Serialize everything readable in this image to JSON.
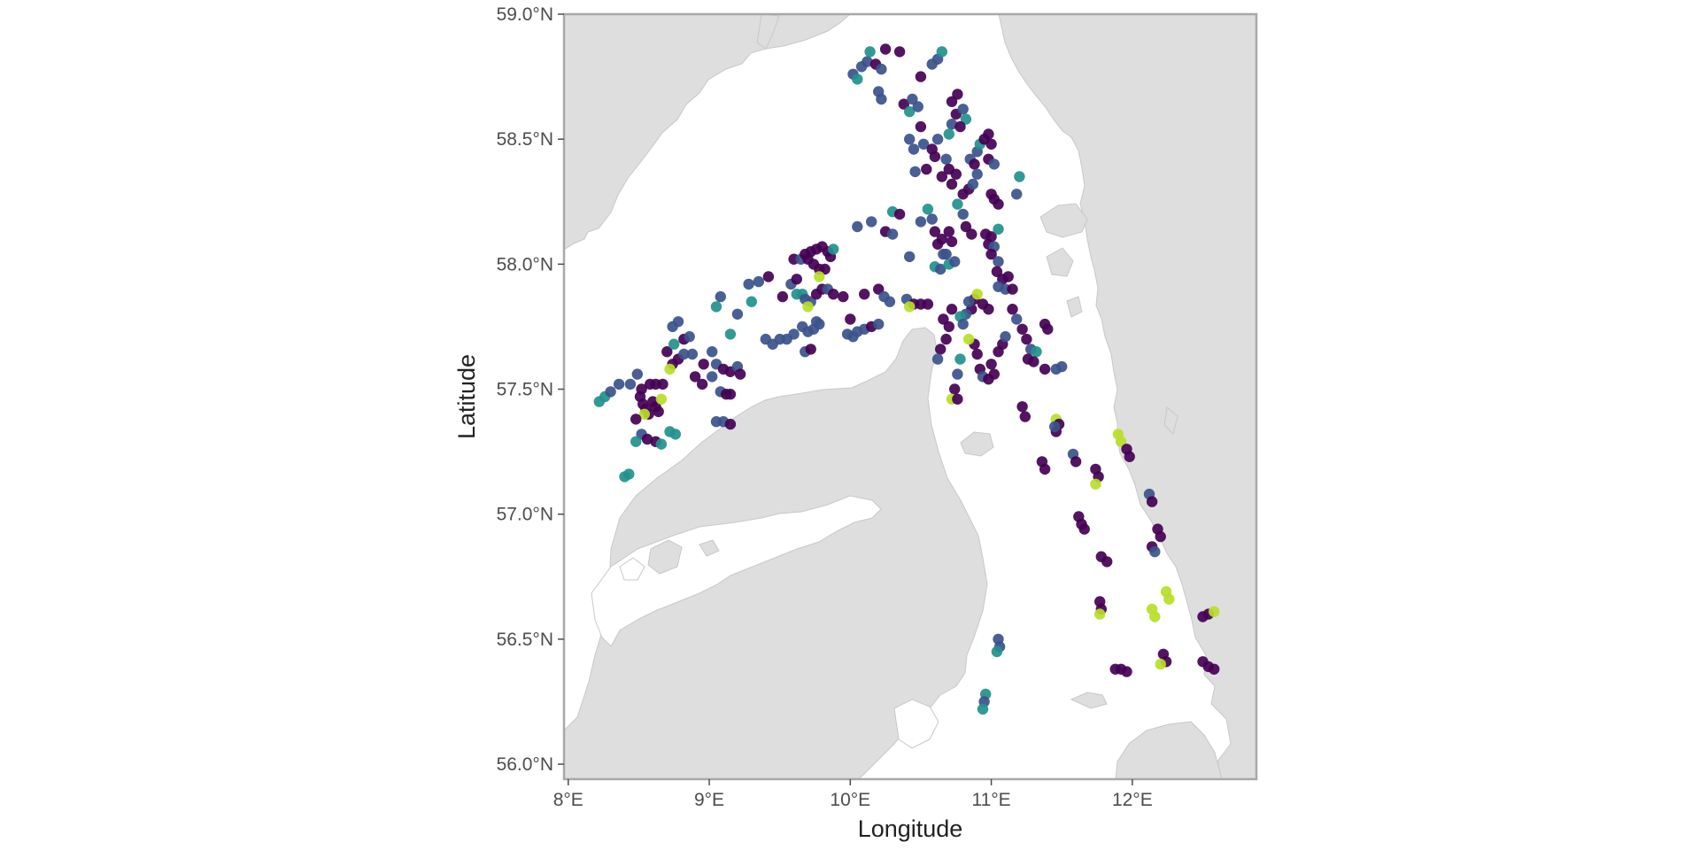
{
  "chart_data": {
    "type": "scatter",
    "subtype": "geographic point map",
    "xlabel": "Longitude",
    "ylabel": "Latitude",
    "xlim": [
      7.97,
      12.88
    ],
    "ylim": [
      55.94,
      59.0
    ],
    "x_ticks": [
      {
        "value": 8,
        "label": "8°E"
      },
      {
        "value": 9,
        "label": "9°E"
      },
      {
        "value": 10,
        "label": "10°E"
      },
      {
        "value": 11,
        "label": "11°E"
      },
      {
        "value": 12,
        "label": "12°E"
      }
    ],
    "y_ticks": [
      {
        "value": 56.0,
        "label": "56.0°N"
      },
      {
        "value": 56.5,
        "label": "56.5°N"
      },
      {
        "value": 57.0,
        "label": "57.0°N"
      },
      {
        "value": 57.5,
        "label": "57.5°N"
      },
      {
        "value": 58.0,
        "label": "58.0°N"
      },
      {
        "value": 58.5,
        "label": "58.5°N"
      },
      {
        "value": 59.0,
        "label": "59.0°N"
      }
    ],
    "grid": false,
    "legend": "none",
    "background_land_color": "#dedede",
    "sea_color": "#ffffff",
    "palette": {
      "a": "#440154",
      "b": "#3b528b",
      "c": "#21918c",
      "d": "#b8de29"
    },
    "points": [
      [
        8.22,
        57.45,
        "c"
      ],
      [
        8.26,
        57.47,
        "c"
      ],
      [
        8.3,
        57.49,
        "b"
      ],
      [
        8.36,
        57.52,
        "b"
      ],
      [
        8.44,
        57.52,
        "b"
      ],
      [
        8.49,
        57.56,
        "b"
      ],
      [
        8.51,
        57.47,
        "a"
      ],
      [
        8.53,
        57.44,
        "a"
      ],
      [
        8.55,
        57.42,
        "a"
      ],
      [
        8.57,
        57.4,
        "a"
      ],
      [
        8.6,
        57.45,
        "a"
      ],
      [
        8.62,
        57.43,
        "a"
      ],
      [
        8.64,
        57.41,
        "a"
      ],
      [
        8.66,
        57.46,
        "d"
      ],
      [
        8.58,
        57.52,
        "a"
      ],
      [
        8.62,
        57.52,
        "a"
      ],
      [
        8.67,
        57.52,
        "a"
      ],
      [
        8.54,
        57.4,
        "d"
      ],
      [
        8.52,
        57.32,
        "b"
      ],
      [
        8.56,
        57.3,
        "a"
      ],
      [
        8.62,
        57.29,
        "a"
      ],
      [
        8.66,
        57.28,
        "c"
      ],
      [
        8.48,
        57.29,
        "c"
      ],
      [
        8.72,
        57.33,
        "c"
      ],
      [
        8.76,
        57.32,
        "c"
      ],
      [
        8.4,
        57.15,
        "c"
      ],
      [
        8.43,
        57.16,
        "c"
      ],
      [
        8.48,
        57.38,
        "a"
      ],
      [
        8.52,
        57.5,
        "a"
      ],
      [
        8.7,
        57.65,
        "a"
      ],
      [
        8.75,
        57.68,
        "c"
      ],
      [
        8.78,
        57.62,
        "a"
      ],
      [
        8.74,
        57.6,
        "a"
      ],
      [
        8.72,
        57.58,
        "d"
      ],
      [
        8.82,
        57.64,
        "b"
      ],
      [
        8.74,
        57.75,
        "b"
      ],
      [
        8.78,
        57.77,
        "b"
      ],
      [
        8.82,
        57.7,
        "a"
      ],
      [
        8.86,
        57.71,
        "b"
      ],
      [
        8.88,
        57.64,
        "b"
      ],
      [
        8.9,
        57.55,
        "a"
      ],
      [
        8.95,
        57.52,
        "a"
      ],
      [
        8.96,
        57.6,
        "a"
      ],
      [
        9.02,
        57.55,
        "b"
      ],
      [
        9.05,
        57.6,
        "b"
      ],
      [
        9.1,
        57.58,
        "a"
      ],
      [
        9.15,
        57.57,
        "a"
      ],
      [
        9.2,
        57.59,
        "b"
      ],
      [
        9.22,
        57.56,
        "a"
      ],
      [
        9.08,
        57.49,
        "b"
      ],
      [
        9.12,
        57.48,
        "a"
      ],
      [
        9.15,
        57.48,
        "a"
      ],
      [
        9.05,
        57.37,
        "b"
      ],
      [
        9.1,
        57.37,
        "b"
      ],
      [
        9.15,
        57.36,
        "a"
      ],
      [
        9.02,
        57.65,
        "b"
      ],
      [
        9.05,
        57.83,
        "c"
      ],
      [
        9.08,
        57.87,
        "b"
      ],
      [
        9.15,
        57.72,
        "c"
      ],
      [
        9.2,
        57.8,
        "b"
      ],
      [
        9.3,
        57.85,
        "c"
      ],
      [
        9.28,
        57.92,
        "b"
      ],
      [
        9.35,
        57.93,
        "b"
      ],
      [
        9.42,
        57.95,
        "a"
      ],
      [
        9.4,
        57.7,
        "b"
      ],
      [
        9.45,
        57.68,
        "b"
      ],
      [
        9.5,
        57.7,
        "b"
      ],
      [
        9.55,
        57.7,
        "b"
      ],
      [
        9.6,
        57.72,
        "b"
      ],
      [
        9.52,
        57.87,
        "a"
      ],
      [
        9.58,
        57.92,
        "b"
      ],
      [
        9.62,
        57.88,
        "c"
      ],
      [
        9.66,
        57.88,
        "c"
      ],
      [
        9.68,
        57.86,
        "b"
      ],
      [
        9.72,
        57.85,
        "b"
      ],
      [
        9.76,
        57.88,
        "a"
      ],
      [
        9.8,
        57.9,
        "a"
      ],
      [
        9.84,
        57.9,
        "b"
      ],
      [
        9.88,
        57.88,
        "a"
      ],
      [
        9.7,
        57.83,
        "d"
      ],
      [
        9.62,
        57.94,
        "a"
      ],
      [
        9.6,
        58.02,
        "a"
      ],
      [
        9.65,
        58.02,
        "b"
      ],
      [
        9.68,
        58.04,
        "a"
      ],
      [
        9.72,
        58.05,
        "a"
      ],
      [
        9.76,
        58.06,
        "a"
      ],
      [
        9.8,
        58.07,
        "a"
      ],
      [
        9.84,
        58.05,
        "a"
      ],
      [
        9.86,
        58.03,
        "a"
      ],
      [
        9.74,
        58.0,
        "a"
      ],
      [
        9.78,
        57.98,
        "a"
      ],
      [
        9.82,
        57.98,
        "a"
      ],
      [
        9.78,
        57.95,
        "d"
      ],
      [
        9.88,
        58.06,
        "c"
      ],
      [
        9.7,
        58.02,
        "a"
      ],
      [
        9.66,
        57.75,
        "b"
      ],
      [
        9.7,
        57.73,
        "b"
      ],
      [
        9.74,
        57.74,
        "b"
      ],
      [
        9.78,
        57.76,
        "b"
      ],
      [
        9.68,
        57.65,
        "b"
      ],
      [
        9.72,
        57.66,
        "a"
      ],
      [
        9.76,
        57.77,
        "b"
      ],
      [
        9.95,
        57.87,
        "a"
      ],
      [
        10.0,
        57.78,
        "a"
      ],
      [
        10.05,
        57.73,
        "b"
      ],
      [
        10.1,
        57.74,
        "b"
      ],
      [
        10.15,
        57.75,
        "a"
      ],
      [
        10.2,
        57.76,
        "b"
      ],
      [
        9.98,
        57.72,
        "b"
      ],
      [
        10.02,
        57.71,
        "b"
      ],
      [
        10.1,
        57.88,
        "a"
      ],
      [
        10.2,
        57.9,
        "a"
      ],
      [
        10.24,
        57.87,
        "b"
      ],
      [
        10.28,
        57.85,
        "b"
      ],
      [
        10.05,
        58.15,
        "b"
      ],
      [
        10.15,
        58.17,
        "b"
      ],
      [
        10.25,
        58.13,
        "a"
      ],
      [
        10.3,
        58.12,
        "b"
      ],
      [
        10.3,
        58.21,
        "c"
      ],
      [
        10.35,
        58.2,
        "a"
      ],
      [
        10.42,
        58.03,
        "b"
      ],
      [
        10.4,
        57.86,
        "b"
      ],
      [
        10.45,
        57.84,
        "a"
      ],
      [
        10.5,
        57.84,
        "a"
      ],
      [
        10.55,
        57.84,
        "a"
      ],
      [
        10.42,
        57.83,
        "d"
      ],
      [
        10.02,
        58.76,
        "b"
      ],
      [
        10.05,
        58.74,
        "c"
      ],
      [
        10.08,
        58.79,
        "b"
      ],
      [
        10.12,
        58.81,
        "b"
      ],
      [
        10.14,
        58.85,
        "c"
      ],
      [
        10.18,
        58.8,
        "a"
      ],
      [
        10.22,
        58.78,
        "b"
      ],
      [
        10.25,
        58.86,
        "a"
      ],
      [
        10.2,
        58.69,
        "b"
      ],
      [
        10.22,
        58.66,
        "b"
      ],
      [
        10.35,
        58.85,
        "a"
      ],
      [
        10.38,
        58.64,
        "a"
      ],
      [
        10.42,
        58.61,
        "c"
      ],
      [
        10.44,
        58.66,
        "b"
      ],
      [
        10.48,
        58.63,
        "b"
      ],
      [
        10.5,
        58.75,
        "a"
      ],
      [
        10.58,
        58.8,
        "b"
      ],
      [
        10.62,
        58.82,
        "b"
      ],
      [
        10.65,
        58.85,
        "c"
      ],
      [
        10.42,
        58.5,
        "b"
      ],
      [
        10.45,
        58.46,
        "b"
      ],
      [
        10.5,
        58.55,
        "a"
      ],
      [
        10.52,
        58.48,
        "b"
      ],
      [
        10.54,
        58.38,
        "a"
      ],
      [
        10.46,
        58.37,
        "b"
      ],
      [
        10.58,
        58.46,
        "a"
      ],
      [
        10.6,
        58.43,
        "a"
      ],
      [
        10.62,
        58.5,
        "b"
      ],
      [
        10.68,
        58.42,
        "b"
      ],
      [
        10.65,
        58.35,
        "a"
      ],
      [
        10.7,
        58.38,
        "a"
      ],
      [
        10.72,
        58.32,
        "a"
      ],
      [
        10.75,
        58.36,
        "a"
      ],
      [
        10.72,
        58.56,
        "b"
      ],
      [
        10.75,
        58.6,
        "a"
      ],
      [
        10.72,
        58.65,
        "a"
      ],
      [
        10.76,
        58.68,
        "a"
      ],
      [
        10.8,
        58.62,
        "b"
      ],
      [
        10.82,
        58.58,
        "c"
      ],
      [
        10.78,
        58.55,
        "a"
      ],
      [
        10.7,
        58.52,
        "c"
      ],
      [
        10.85,
        58.42,
        "b"
      ],
      [
        10.88,
        58.4,
        "a"
      ],
      [
        10.9,
        58.45,
        "b"
      ],
      [
        10.92,
        58.48,
        "c"
      ],
      [
        10.95,
        58.5,
        "a"
      ],
      [
        10.98,
        58.52,
        "a"
      ],
      [
        11.0,
        58.48,
        "a"
      ],
      [
        10.84,
        58.3,
        "a"
      ],
      [
        10.87,
        58.32,
        "b"
      ],
      [
        10.9,
        58.36,
        "b"
      ],
      [
        10.8,
        58.28,
        "a"
      ],
      [
        10.98,
        58.42,
        "a"
      ],
      [
        11.02,
        58.4,
        "b"
      ],
      [
        11.2,
        58.35,
        "c"
      ],
      [
        11.18,
        58.28,
        "b"
      ],
      [
        11.02,
        58.26,
        "a"
      ],
      [
        11.05,
        58.24,
        "a"
      ],
      [
        11.0,
        58.28,
        "a"
      ],
      [
        10.5,
        58.17,
        "b"
      ],
      [
        10.55,
        58.22,
        "c"
      ],
      [
        10.58,
        58.18,
        "b"
      ],
      [
        10.6,
        58.13,
        "a"
      ],
      [
        10.62,
        58.08,
        "a"
      ],
      [
        10.65,
        58.1,
        "a"
      ],
      [
        10.66,
        58.04,
        "b"
      ],
      [
        10.7,
        58.13,
        "a"
      ],
      [
        10.72,
        58.09,
        "a"
      ],
      [
        10.76,
        58.24,
        "c"
      ],
      [
        10.8,
        58.2,
        "b"
      ],
      [
        10.82,
        58.15,
        "a"
      ],
      [
        10.86,
        58.12,
        "a"
      ],
      [
        10.6,
        57.99,
        "c"
      ],
      [
        10.64,
        57.98,
        "b"
      ],
      [
        10.7,
        58.0,
        "c"
      ],
      [
        10.74,
        58.01,
        "b"
      ],
      [
        10.68,
        58.04,
        "b"
      ],
      [
        10.96,
        58.12,
        "a"
      ],
      [
        11.0,
        58.11,
        "a"
      ],
      [
        11.05,
        58.14,
        "c"
      ],
      [
        10.98,
        58.08,
        "a"
      ],
      [
        11.02,
        58.07,
        "b"
      ],
      [
        11.0,
        58.04,
        "a"
      ],
      [
        11.05,
        58.01,
        "b"
      ],
      [
        11.04,
        57.97,
        "a"
      ],
      [
        11.08,
        57.94,
        "a"
      ],
      [
        11.12,
        57.95,
        "a"
      ],
      [
        11.1,
        57.9,
        "b"
      ],
      [
        11.15,
        57.9,
        "a"
      ],
      [
        11.05,
        57.91,
        "b"
      ],
      [
        10.88,
        57.86,
        "a"
      ],
      [
        10.9,
        57.88,
        "d"
      ],
      [
        10.94,
        57.84,
        "a"
      ],
      [
        10.98,
        57.82,
        "a"
      ],
      [
        10.86,
        57.82,
        "a"
      ],
      [
        10.82,
        57.8,
        "b"
      ],
      [
        10.84,
        57.85,
        "b"
      ],
      [
        10.78,
        57.79,
        "c"
      ],
      [
        10.8,
        57.76,
        "b"
      ],
      [
        10.66,
        57.78,
        "a"
      ],
      [
        10.72,
        57.82,
        "a"
      ],
      [
        10.7,
        57.75,
        "a"
      ],
      [
        10.68,
        57.7,
        "a"
      ],
      [
        10.64,
        57.66,
        "a"
      ],
      [
        10.62,
        57.62,
        "b"
      ],
      [
        10.76,
        57.56,
        "b"
      ],
      [
        10.74,
        57.5,
        "a"
      ],
      [
        10.72,
        57.46,
        "d"
      ],
      [
        10.76,
        57.46,
        "a"
      ],
      [
        10.78,
        57.62,
        "c"
      ],
      [
        10.88,
        57.68,
        "a"
      ],
      [
        10.9,
        57.64,
        "a"
      ],
      [
        10.84,
        57.7,
        "d"
      ],
      [
        10.92,
        57.58,
        "a"
      ],
      [
        10.94,
        57.55,
        "b"
      ],
      [
        10.98,
        57.54,
        "a"
      ],
      [
        11.02,
        57.56,
        "a"
      ],
      [
        11.0,
        57.6,
        "a"
      ],
      [
        11.05,
        57.65,
        "a"
      ],
      [
        11.08,
        57.68,
        "a"
      ],
      [
        11.1,
        57.71,
        "b"
      ],
      [
        11.15,
        57.82,
        "a"
      ],
      [
        11.18,
        57.78,
        "b"
      ],
      [
        11.22,
        57.74,
        "a"
      ],
      [
        11.25,
        57.7,
        "a"
      ],
      [
        11.28,
        57.66,
        "b"
      ],
      [
        11.32,
        57.65,
        "c"
      ],
      [
        11.3,
        57.61,
        "a"
      ],
      [
        11.26,
        57.62,
        "a"
      ],
      [
        11.38,
        57.58,
        "a"
      ],
      [
        11.4,
        57.74,
        "a"
      ],
      [
        11.38,
        57.76,
        "a"
      ],
      [
        11.46,
        57.58,
        "b"
      ],
      [
        11.5,
        57.59,
        "b"
      ],
      [
        11.22,
        57.43,
        "a"
      ],
      [
        11.24,
        57.39,
        "a"
      ],
      [
        11.46,
        57.38,
        "d"
      ],
      [
        11.48,
        57.36,
        "a"
      ],
      [
        11.46,
        57.33,
        "a"
      ],
      [
        11.45,
        57.35,
        "b"
      ],
      [
        11.36,
        57.21,
        "a"
      ],
      [
        11.38,
        57.18,
        "a"
      ],
      [
        11.58,
        57.24,
        "b"
      ],
      [
        11.6,
        57.21,
        "a"
      ],
      [
        11.74,
        57.18,
        "a"
      ],
      [
        11.76,
        57.15,
        "a"
      ],
      [
        11.74,
        57.12,
        "d"
      ],
      [
        11.9,
        57.32,
        "d"
      ],
      [
        11.92,
        57.29,
        "d"
      ],
      [
        11.96,
        57.26,
        "a"
      ],
      [
        11.98,
        57.23,
        "a"
      ],
      [
        11.62,
        56.99,
        "a"
      ],
      [
        11.64,
        56.96,
        "a"
      ],
      [
        11.66,
        56.94,
        "a"
      ],
      [
        11.78,
        56.83,
        "a"
      ],
      [
        11.82,
        56.81,
        "a"
      ],
      [
        12.12,
        57.08,
        "b"
      ],
      [
        12.14,
        57.05,
        "a"
      ],
      [
        12.18,
        56.94,
        "a"
      ],
      [
        12.2,
        56.91,
        "a"
      ],
      [
        12.14,
        56.87,
        "a"
      ],
      [
        12.16,
        56.85,
        "b"
      ],
      [
        12.24,
        56.69,
        "d"
      ],
      [
        12.26,
        56.66,
        "d"
      ],
      [
        12.14,
        56.62,
        "d"
      ],
      [
        12.16,
        56.59,
        "d"
      ],
      [
        11.77,
        56.65,
        "a"
      ],
      [
        11.78,
        56.62,
        "a"
      ],
      [
        11.77,
        56.6,
        "d"
      ],
      [
        12.5,
        56.59,
        "a"
      ],
      [
        12.54,
        56.6,
        "a"
      ],
      [
        12.58,
        56.61,
        "d"
      ],
      [
        12.5,
        56.41,
        "a"
      ],
      [
        12.54,
        56.39,
        "a"
      ],
      [
        12.58,
        56.38,
        "a"
      ],
      [
        12.22,
        56.44,
        "a"
      ],
      [
        12.24,
        56.41,
        "a"
      ],
      [
        12.2,
        56.4,
        "d"
      ],
      [
        11.88,
        56.38,
        "a"
      ],
      [
        11.92,
        56.38,
        "a"
      ],
      [
        11.96,
        56.37,
        "a"
      ],
      [
        11.05,
        56.5,
        "b"
      ],
      [
        11.06,
        56.47,
        "b"
      ],
      [
        11.04,
        56.45,
        "c"
      ],
      [
        10.96,
        56.28,
        "c"
      ],
      [
        10.95,
        56.25,
        "b"
      ],
      [
        10.94,
        56.22,
        "c"
      ]
    ]
  }
}
